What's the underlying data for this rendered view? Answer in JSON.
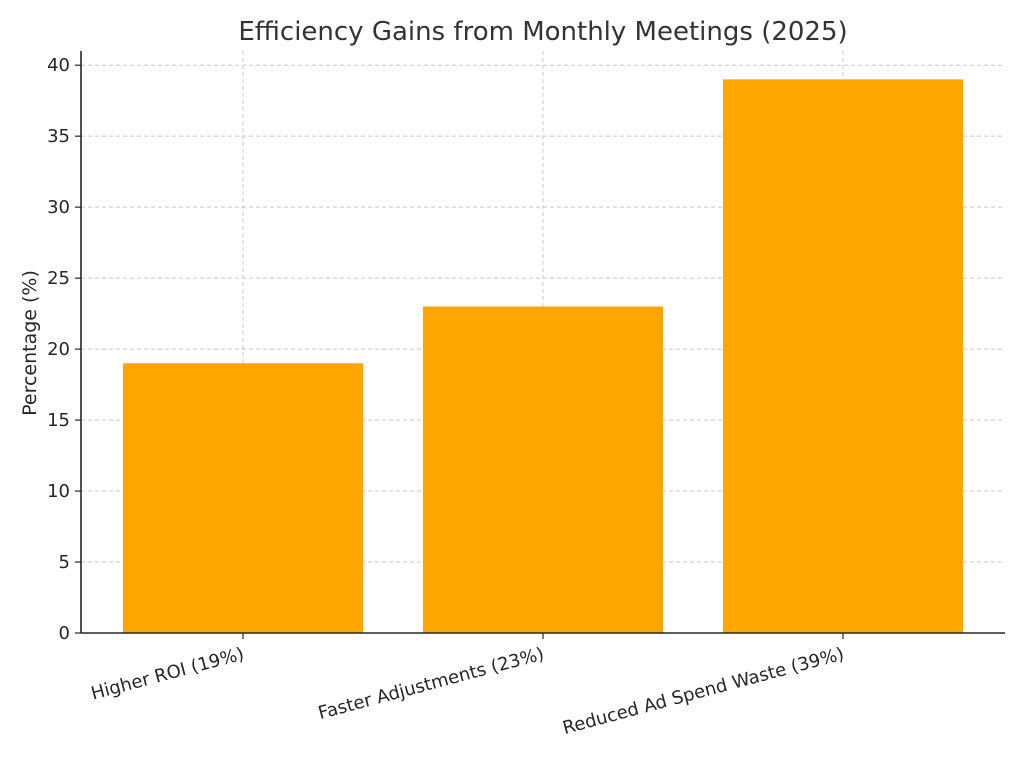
{
  "chart_data": {
    "type": "bar",
    "title": "Efficiency Gains from Monthly Meetings (2025)",
    "xlabel": "",
    "ylabel": "Percentage (%)",
    "categories": [
      "Higher ROI (19%)",
      "Faster Adjustments (23%)",
      "Reduced Ad Spend Waste (39%)"
    ],
    "values": [
      19,
      23,
      39
    ],
    "ylim": [
      0,
      41
    ],
    "yticks": [
      0,
      5,
      10,
      15,
      20,
      25,
      30,
      35,
      40
    ],
    "grid": true,
    "bar_color": "#FFA500"
  }
}
